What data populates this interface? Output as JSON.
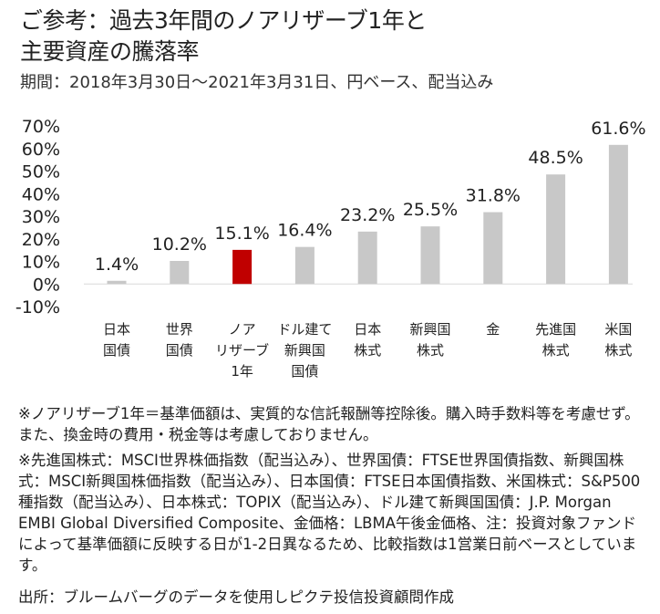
{
  "title_line1": "ご参考：過去3年間のノアリザーブ1年と",
  "title_line2": "主要資産の騰落率",
  "period": "期間：2018年3月30日～2021年3月31日、円ベース、配当込み",
  "chart_data": {
    "type": "bar",
    "categories": [
      [
        "日本",
        "国債"
      ],
      [
        "世界",
        "国債"
      ],
      [
        "ノア",
        "リザーブ",
        "1年"
      ],
      [
        "ドル建て",
        "新興国",
        "国債"
      ],
      [
        "日本",
        "株式"
      ],
      [
        "新興国",
        "株式"
      ],
      [
        "金"
      ],
      [
        "先進国",
        "株式"
      ],
      [
        "米国",
        "株式"
      ]
    ],
    "values": [
      1.4,
      10.2,
      15.1,
      16.4,
      23.2,
      25.5,
      31.8,
      48.5,
      61.6
    ],
    "data_labels": [
      "1.4%",
      "10.2%",
      "15.1%",
      "16.4%",
      "23.2%",
      "25.5%",
      "31.8%",
      "48.5%",
      "61.6%"
    ],
    "y_ticks": [
      "70%",
      "60%",
      "50%",
      "40%",
      "30%",
      "20%",
      "10%",
      "0%",
      "-10%"
    ],
    "ylim": [
      -10,
      70
    ],
    "highlight_index": 2,
    "colors": {
      "bar": "#c8c8c8",
      "highlight": "#c00000"
    },
    "grid": false
  },
  "notes": {
    "note1": "※ノアリザーブ1年＝基準価額は、実質的な信託報酬等控除後。購入時手数料等を考慮せず。また、換金時の費用・税金等は考慮しておりません。",
    "note2": "※先進国株式：MSCI世界株価指数（配当込み）、世界国債：FTSE世界国債指数、新興国株式：MSCI新興国株価指数（配当込み）、日本国債：FTSE日本国債指数、米国株式：S&P500種指数（配当込み）、日本株式：TOPIX（配当込み）、ドル建て新興国国債：J.P. Morgan EMBI Global Diversified Composite、金価格：LBMA午後金価格、注：投資対象ファンドによって基準価額に反映する日が1-2日異なるため、比較指数は1営業日前ベースとしています。",
    "source": "出所：ブルームバーグのデータを使用しピクテ投信投資顧問作成"
  }
}
